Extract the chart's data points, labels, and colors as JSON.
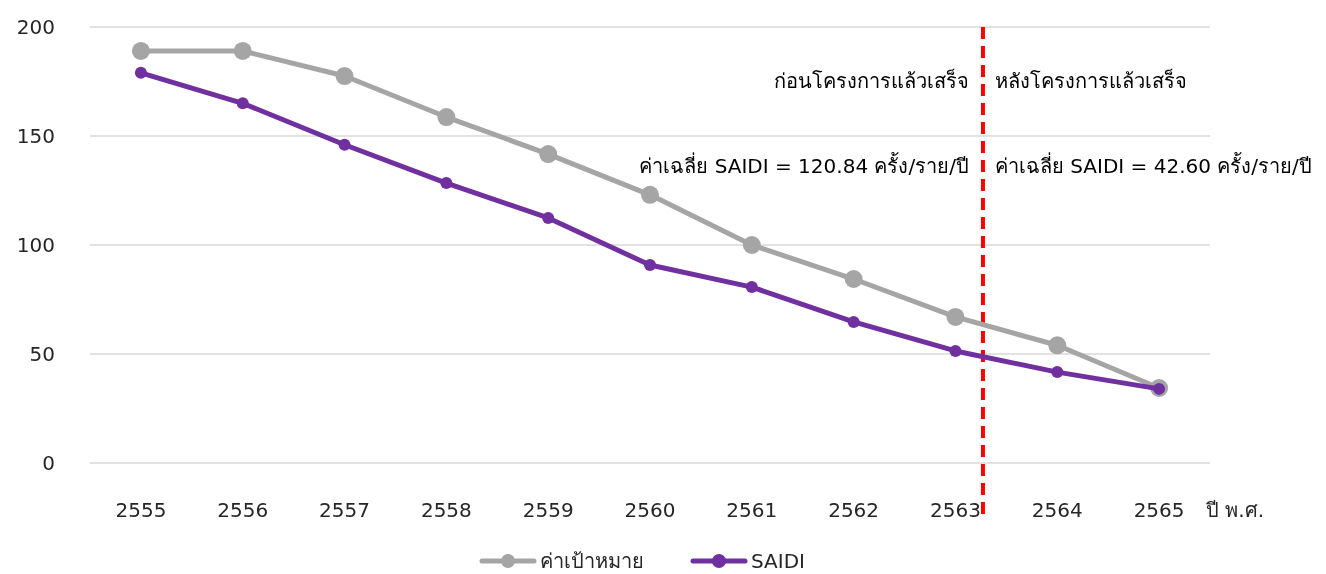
{
  "chart_data": {
    "type": "line",
    "xlabel": "ปี พ.ศ.",
    "x": [
      2555,
      2556,
      2557,
      2558,
      2559,
      2560,
      2561,
      2562,
      2563,
      2564,
      2565
    ],
    "series": [
      {
        "name": "ค่าเป้าหมาย",
        "color": "#a5a5a5",
        "values": [
          189,
          189,
          177.5,
          158.7,
          141.7,
          123,
          100,
          84.4,
          67,
          54,
          34.4
        ]
      },
      {
        "name": "SAIDI",
        "color": "#7030a0",
        "values": [
          179,
          165,
          146,
          128.4,
          112.4,
          90.8,
          80.7,
          64.7,
          51.4,
          41.7,
          34
        ]
      }
    ],
    "xlim": [
      2554.5,
      2565.5
    ],
    "xticks": [
      2555,
      2556,
      2557,
      2558,
      2559,
      2560,
      2561,
      2562,
      2563,
      2564,
      2565
    ],
    "ylim": [
      0,
      200
    ],
    "yticks": [
      0,
      50,
      100,
      150,
      200
    ],
    "grid": "y",
    "legend": "bottom",
    "marker": "circle",
    "line_style": "solid",
    "ref_lines": [
      {
        "axis": "x",
        "value": 2563.27,
        "color": "#ff0000",
        "line_style": "dashed"
      }
    ],
    "annotations": [
      "ก่อนโครงการแล้วเสร็จ",
      "หลังโครงการแล้วเสร็จ",
      "ค่าเฉลี่ย SAIDI = 120.84 ครั้ง/ราย/ปี",
      "ค่าเฉลี่ย SAIDI = 42.60 ครั้ง/ราย/ปี"
    ]
  }
}
